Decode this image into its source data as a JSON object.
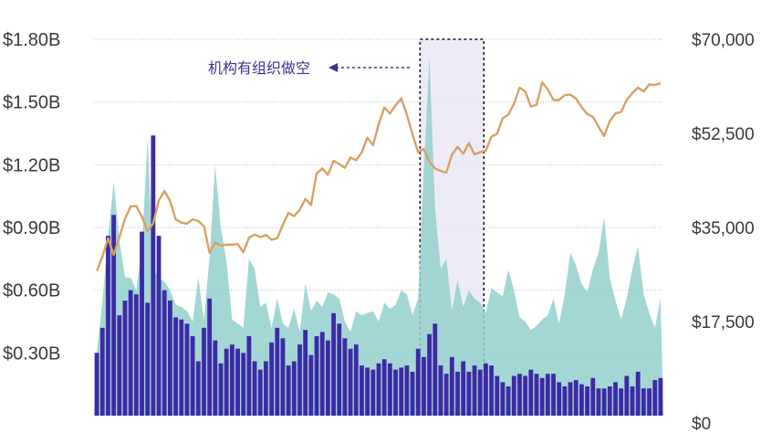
{
  "colors": {
    "bars": "#3d2aa6",
    "area": "#93d0cc",
    "line": "#d9a062",
    "grid": "#bdbdbd",
    "highlight_fill": "#e8e4f3",
    "annotation": "#3e338f"
  },
  "chart_data": {
    "type": "bar",
    "title": "",
    "xlabel": "",
    "ylabel": "",
    "y_left": {
      "ticks": [
        "$0.30B",
        "$0.60B",
        "$0.90B",
        "$1.20B",
        "$1.50B",
        "$1.80B"
      ],
      "values": [
        0.3,
        0.6,
        0.9,
        1.2,
        1.5,
        1.8
      ],
      "ylim": [
        0,
        1.8
      ],
      "unit": "B"
    },
    "y_right": {
      "ticks": [
        "$0",
        "$17,500",
        "$35,000",
        "$52,500",
        "$70,000"
      ],
      "values": [
        0,
        17500,
        35000,
        52500,
        70000
      ],
      "ylim": [
        0,
        70000
      ]
    },
    "grid": true,
    "annotation": {
      "text": "机构有组织做空"
    },
    "highlight": {
      "from_index": 58,
      "to_index": 68
    },
    "series": [
      {
        "type": "bar",
        "axis": "left",
        "values": [
          0.3,
          0.42,
          0.86,
          0.96,
          0.48,
          0.55,
          0.6,
          0.58,
          0.88,
          0.54,
          1.34,
          0.86,
          0.6,
          0.55,
          0.47,
          0.46,
          0.44,
          0.38,
          0.26,
          0.42,
          0.56,
          0.36,
          0.25,
          0.32,
          0.34,
          0.32,
          0.3,
          0.38,
          0.26,
          0.22,
          0.26,
          0.35,
          0.42,
          0.37,
          0.24,
          0.26,
          0.34,
          0.41,
          0.29,
          0.38,
          0.4,
          0.36,
          0.49,
          0.44,
          0.37,
          0.32,
          0.34,
          0.24,
          0.23,
          0.22,
          0.25,
          0.27,
          0.25,
          0.22,
          0.23,
          0.24,
          0.21,
          0.32,
          0.28,
          0.39,
          0.44,
          0.24,
          0.2,
          0.28,
          0.21,
          0.26,
          0.21,
          0.24,
          0.22,
          0.25,
          0.24,
          0.19,
          0.16,
          0.14,
          0.19,
          0.2,
          0.19,
          0.22,
          0.2,
          0.18,
          0.2,
          0.2,
          0.16,
          0.14,
          0.16,
          0.17,
          0.15,
          0.14,
          0.18,
          0.13,
          0.13,
          0.14,
          0.16,
          0.13,
          0.19,
          0.14,
          0.21,
          0.13,
          0.13,
          0.17,
          0.18
        ]
      },
      {
        "type": "area",
        "axis": "left",
        "values": [
          0.3,
          0.55,
          0.85,
          1.12,
          0.84,
          0.66,
          0.66,
          0.6,
          0.8,
          1.33,
          0.7,
          0.66,
          0.64,
          0.6,
          0.53,
          0.52,
          0.5,
          0.45,
          0.66,
          0.46,
          0.76,
          1.2,
          0.9,
          0.74,
          0.46,
          0.44,
          0.42,
          0.75,
          0.7,
          0.52,
          0.54,
          0.42,
          0.56,
          0.44,
          0.42,
          0.51,
          0.4,
          0.63,
          0.5,
          0.55,
          0.52,
          0.59,
          0.58,
          0.56,
          0.45,
          0.4,
          0.5,
          0.48,
          0.49,
          0.5,
          0.45,
          0.54,
          0.51,
          0.53,
          0.6,
          0.58,
          0.48,
          0.56,
          1.16,
          1.72,
          0.99,
          0.7,
          0.75,
          0.5,
          0.65,
          0.52,
          0.6,
          0.56,
          0.54,
          0.49,
          0.61,
          0.59,
          0.57,
          0.7,
          0.6,
          0.47,
          0.45,
          0.41,
          0.43,
          0.46,
          0.48,
          0.56,
          0.44,
          0.58,
          0.78,
          0.72,
          0.63,
          0.59,
          0.7,
          0.78,
          0.95,
          0.66,
          0.55,
          0.46,
          0.56,
          0.7,
          0.81,
          0.58,
          0.49,
          0.42,
          0.56
        ]
      },
      {
        "type": "line",
        "axis": "right",
        "values": [
          26900,
          29600,
          33000,
          29900,
          33200,
          36600,
          38900,
          39000,
          37000,
          34300,
          35800,
          40000,
          41800,
          39900,
          36500,
          35900,
          35700,
          36500,
          36200,
          35200,
          30300,
          32200,
          31600,
          31800,
          31800,
          31900,
          30400,
          33100,
          33700,
          33200,
          33600,
          32700,
          33000,
          35500,
          37700,
          37100,
          38300,
          40300,
          39200,
          45000,
          46000,
          44800,
          47400,
          46800,
          46100,
          48000,
          47500,
          49000,
          51700,
          50300,
          54200,
          57300,
          56200,
          57700,
          59000,
          56000,
          52300,
          49000,
          49600,
          47200,
          46000,
          45500,
          45200,
          48500,
          50000,
          48700,
          50700,
          48600,
          49000,
          49300,
          51900,
          52400,
          55300,
          56000,
          58000,
          61000,
          60300,
          57500,
          57800,
          62000,
          60700,
          58700,
          58700,
          59600,
          59700,
          59000,
          57400,
          56100,
          55600,
          53700,
          52000,
          54800,
          56200,
          56500,
          58700,
          60000,
          61000,
          60300,
          61600,
          61500,
          61800
        ]
      }
    ]
  }
}
